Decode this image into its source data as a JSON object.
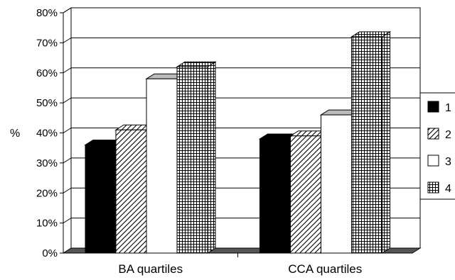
{
  "chart_data": {
    "type": "bar",
    "ylabel": "%",
    "ylim": [
      0,
      0.8
    ],
    "y_ticks": [
      "0%",
      "10%",
      "20%",
      "30%",
      "40%",
      "50%",
      "60%",
      "70%",
      "80%"
    ],
    "categories": [
      "BA quartiles",
      "CCA quartiles"
    ],
    "series": [
      {
        "name": "1",
        "values": [
          0.36,
          0.38
        ],
        "fill": "solid-black"
      },
      {
        "name": "2",
        "values": [
          0.41,
          0.39
        ],
        "fill": "diagonal-hatch"
      },
      {
        "name": "3",
        "values": [
          0.58,
          0.46
        ],
        "fill": "white"
      },
      {
        "name": "4",
        "values": [
          0.62,
          0.72
        ],
        "fill": "grid"
      }
    ],
    "grid": true,
    "legend_position": "right",
    "style": "3d-bars"
  }
}
